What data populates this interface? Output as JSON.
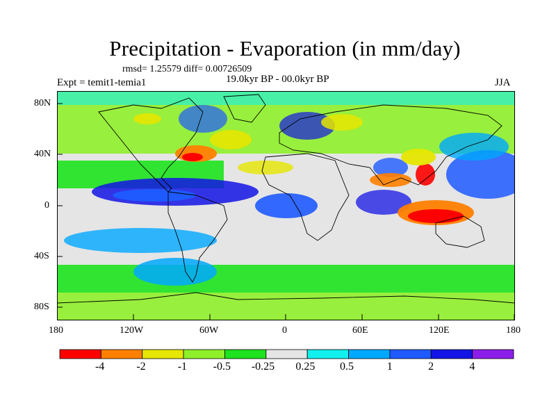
{
  "title": "Precipitation - Evaporation (in mm/day)",
  "stats_text": "rmsd= 1.25579 diff= 0.00726509",
  "experiment_text": "Expt = temit1-temia1",
  "period_text": "19.0kyr BP - 00.0kyr BP",
  "season_text": "JJA",
  "chart_data": {
    "type": "heatmap",
    "title": "Precipitation - Evaporation (in mm/day)",
    "xlabel": "",
    "ylabel": "",
    "x_ticks": [
      "180",
      "120W",
      "60W",
      "0",
      "60E",
      "120E",
      "180"
    ],
    "y_ticks": [
      "80N",
      "40N",
      "0",
      "40S",
      "80S"
    ],
    "xlim": [
      -180,
      180
    ],
    "ylim": [
      -90,
      90
    ],
    "colorbar": {
      "labels": [
        "-4",
        "-2",
        "-1",
        "-0.5",
        "-0.25",
        "0.25",
        "0.5",
        "1",
        "2",
        "4"
      ],
      "colors": [
        "#ff0000",
        "#ff8000",
        "#e6e600",
        "#8ff02a",
        "#1ee31e",
        "#e5e5e5",
        "#11f0ec",
        "#00a8ff",
        "#1e5aff",
        "#1414e6",
        "#8c1eea"
      ]
    }
  },
  "colors": {
    "ocean_background": "#e5e5e5",
    "coastline": "#000000"
  }
}
